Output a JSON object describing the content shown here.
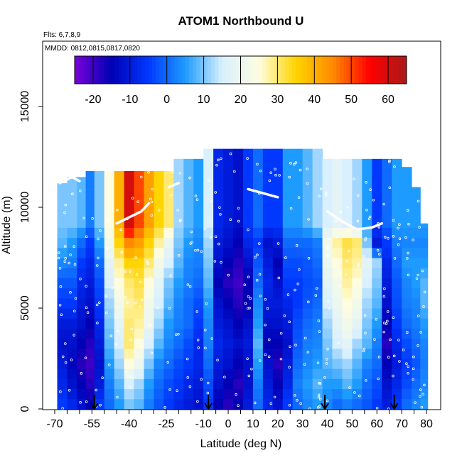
{
  "chart_data": {
    "type": "heatmap",
    "title": "ATOM1 Northbound U",
    "annotations": {
      "flights": "Flts: 6,7,8,9",
      "dates": "MMDD: 0812,0815,0817,0820"
    },
    "xlabel": "Latitude (deg N)",
    "ylabel": "Altitude (m)",
    "xlim": [
      -70,
      80
    ],
    "ylim": [
      0,
      18000
    ],
    "x_ticks": [
      -70,
      -55,
      -40,
      -25,
      -10,
      0,
      10,
      20,
      30,
      40,
      50,
      60,
      70,
      80
    ],
    "y_ticks": [
      0,
      5000,
      10000,
      15000
    ],
    "colorbar": {
      "range": [
        -25,
        65
      ],
      "ticks": [
        -20,
        -10,
        0,
        10,
        20,
        30,
        40,
        50,
        60
      ],
      "colors": [
        "#7b00d8",
        "#0000b4",
        "#0038ff",
        "#1e9bff",
        "#d8f0ff",
        "#fffde0",
        "#ffd400",
        "#ff8a00",
        "#ff0000",
        "#a81a1a"
      ]
    },
    "column_profiles": [
      {
        "lat": -67,
        "top": 11200,
        "values": [
          -5,
          -8,
          -10,
          -12,
          -10,
          -5,
          -2,
          3,
          8,
          10
        ]
      },
      {
        "lat": -63,
        "top": 11500,
        "values": [
          -8,
          -12,
          -14,
          -12,
          -10,
          -5,
          -2,
          2,
          5,
          10
        ]
      },
      {
        "lat": -59,
        "top": 11500,
        "values": [
          -12,
          -15,
          -18,
          -15,
          -12,
          -10,
          -8,
          -5,
          0,
          8
        ]
      },
      {
        "lat": -56,
        "top": 11800,
        "values": [
          -15,
          -18,
          -20,
          -18,
          -15,
          -12,
          -10,
          -8,
          -5,
          2
        ]
      },
      {
        "lat": -52,
        "top": 11800,
        "values": [
          -5,
          -10,
          -12,
          -10,
          -8,
          -5,
          -3,
          0,
          5,
          10
        ]
      },
      {
        "lat": -48,
        "top": 11800,
        "values": [
          0,
          2,
          5,
          8,
          10,
          12,
          15,
          18,
          22,
          25
        ]
      },
      {
        "lat": -44,
        "top": 11800,
        "values": [
          5,
          8,
          12,
          15,
          18,
          22,
          25,
          28,
          35,
          40
        ]
      },
      {
        "lat": -40,
        "top": 11800,
        "values": [
          10,
          15,
          25,
          30,
          30,
          28,
          30,
          35,
          45,
          60
        ]
      },
      {
        "lat": -36,
        "top": 11800,
        "values": [
          8,
          12,
          20,
          25,
          28,
          30,
          32,
          35,
          42,
          50
        ]
      },
      {
        "lat": -32,
        "top": 11800,
        "values": [
          2,
          5,
          10,
          15,
          20,
          22,
          25,
          30,
          35,
          42
        ]
      },
      {
        "lat": -28,
        "top": 11800,
        "values": [
          -2,
          0,
          3,
          8,
          12,
          15,
          18,
          22,
          28,
          35
        ]
      },
      {
        "lat": -24,
        "top": 11800,
        "values": [
          -5,
          -3,
          0,
          3,
          5,
          8,
          10,
          15,
          20,
          30
        ]
      },
      {
        "lat": -20,
        "top": 12400,
        "values": [
          -8,
          -5,
          -3,
          0,
          2,
          3,
          5,
          8,
          10,
          12
        ]
      },
      {
        "lat": -16,
        "top": 12400,
        "values": [
          -10,
          -8,
          -5,
          -3,
          0,
          0,
          2,
          3,
          5,
          8
        ]
      },
      {
        "lat": -12,
        "top": 12400,
        "values": [
          -12,
          -10,
          -8,
          -8,
          -5,
          -3,
          0,
          2,
          3,
          5
        ]
      },
      {
        "lat": -8,
        "top": 12900,
        "values": [
          -5,
          -3,
          0,
          2,
          3,
          5,
          8,
          10,
          12,
          15
        ]
      },
      {
        "lat": -4,
        "top": 12900,
        "values": [
          -15,
          -12,
          -10,
          -8,
          -10,
          -12,
          -15,
          -12,
          -10,
          -8
        ]
      },
      {
        "lat": 0,
        "top": 12900,
        "values": [
          -18,
          -15,
          -12,
          -10,
          -12,
          -15,
          -18,
          -15,
          -12,
          -10
        ]
      },
      {
        "lat": 4,
        "top": 12900,
        "values": [
          -15,
          -18,
          -15,
          -12,
          -15,
          -18,
          -20,
          -18,
          -15,
          -12
        ]
      },
      {
        "lat": 8,
        "top": 12900,
        "values": [
          -10,
          -12,
          -12,
          -10,
          -12,
          -15,
          -15,
          -12,
          -8,
          -5
        ]
      },
      {
        "lat": 12,
        "top": 12900,
        "values": [
          0,
          2,
          5,
          8,
          5,
          3,
          0,
          -2,
          -5,
          0
        ]
      },
      {
        "lat": 16,
        "top": 12900,
        "values": [
          -8,
          -10,
          -12,
          -15,
          -12,
          -10,
          -8,
          -10,
          -12,
          -5
        ]
      },
      {
        "lat": 20,
        "top": 12900,
        "values": [
          -12,
          -15,
          -18,
          -15,
          -12,
          -10,
          -12,
          -15,
          -10,
          -5
        ]
      },
      {
        "lat": 24,
        "top": 12900,
        "values": [
          -5,
          -8,
          -10,
          -12,
          -10,
          -8,
          -5,
          -3,
          0,
          5
        ]
      },
      {
        "lat": 28,
        "top": 12900,
        "values": [
          0,
          2,
          0,
          -2,
          -3,
          -5,
          -5,
          -3,
          0,
          5
        ]
      },
      {
        "lat": 32,
        "top": 12900,
        "values": [
          3,
          5,
          3,
          2,
          0,
          -2,
          -3,
          -2,
          0,
          8
        ]
      },
      {
        "lat": 36,
        "top": 12900,
        "values": [
          5,
          8,
          5,
          3,
          2,
          0,
          -2,
          0,
          2,
          12
        ]
      },
      {
        "lat": 40,
        "top": 12400,
        "values": [
          3,
          5,
          8,
          10,
          12,
          15,
          18,
          20,
          22,
          15
        ]
      },
      {
        "lat": 44,
        "top": 12400,
        "values": [
          0,
          5,
          10,
          15,
          18,
          20,
          22,
          25,
          28,
          18
        ]
      },
      {
        "lat": 48,
        "top": 12400,
        "values": [
          2,
          8,
          12,
          18,
          22,
          25,
          28,
          30,
          32,
          15
        ]
      },
      {
        "lat": 52,
        "top": 12400,
        "values": [
          0,
          5,
          8,
          12,
          18,
          22,
          25,
          28,
          30,
          12
        ]
      },
      {
        "lat": 56,
        "top": 12400,
        "values": [
          -2,
          0,
          3,
          8,
          10,
          12,
          15,
          18,
          10,
          5
        ]
      },
      {
        "lat": 60,
        "top": 12400,
        "values": [
          -5,
          -3,
          0,
          2,
          5,
          8,
          10,
          12,
          -10,
          -5
        ]
      },
      {
        "lat": 64,
        "top": 12400,
        "values": [
          -10,
          -12,
          -15,
          -18,
          -15,
          -12,
          -10,
          -8,
          -5,
          0
        ]
      },
      {
        "lat": 68,
        "top": 12400,
        "values": [
          -5,
          -8,
          -10,
          -8,
          -5,
          -3,
          -2,
          0,
          2,
          5
        ]
      },
      {
        "lat": 72,
        "top": 12000,
        "values": [
          0,
          -3,
          -5,
          -3,
          0,
          2,
          3,
          5,
          3,
          5
        ]
      },
      {
        "lat": 76,
        "top": 11000,
        "values": [
          3,
          0,
          -2,
          0,
          2,
          3,
          5,
          5,
          3,
          5
        ]
      },
      {
        "lat": 79,
        "top": 9200,
        "values": [
          5,
          3,
          2,
          3,
          5,
          8,
          8,
          5,
          3,
          5
        ]
      }
    ],
    "profile_altitudes": [
      250,
      1250,
      2250,
      3250,
      4250,
      5250,
      6250,
      7250,
      8250,
      9250
    ],
    "tropopause_segments": [
      [
        [
          -68,
          11200
        ],
        [
          -63,
          11500
        ],
        [
          -60,
          11300
        ]
      ],
      [
        [
          -45,
          9200
        ],
        [
          -40,
          9500
        ],
        [
          -35,
          9800
        ],
        [
          -32,
          10200
        ]
      ],
      [
        [
          -24,
          11000
        ],
        [
          -20,
          11200
        ]
      ],
      [
        [
          8,
          10900
        ],
        [
          14,
          10700
        ],
        [
          20,
          10500
        ]
      ],
      [
        [
          40,
          9800
        ],
        [
          46,
          9300
        ],
        [
          52,
          8900
        ],
        [
          58,
          9000
        ],
        [
          62,
          9200
        ]
      ]
    ],
    "arrow_latitudes": [
      -54,
      -8,
      39,
      67
    ]
  }
}
